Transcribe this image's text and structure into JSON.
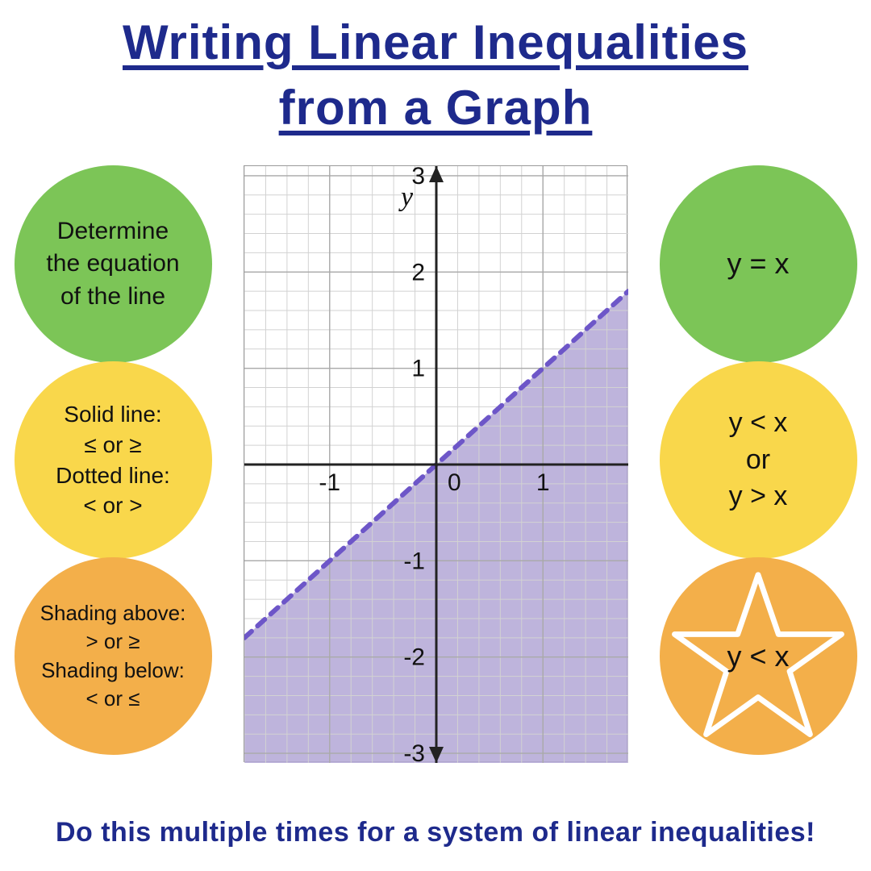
{
  "title_line1": "Writing Linear Inequalities",
  "title_line2": "from a Graph",
  "title_color": "#1e2a8c",
  "title_fontsize": 60,
  "left_circles": [
    {
      "color": "#7cc557",
      "lines": [
        "Determine",
        "the equation",
        "of the line"
      ]
    },
    {
      "color": "#f9d74b",
      "lines": [
        "Solid line:",
        "≤ or ≥",
        "Dotted line:",
        "< or >"
      ]
    },
    {
      "color": "#f3af4a",
      "lines": [
        "Shading above:",
        "> or ≥",
        "Shading below:",
        "< or ≤"
      ]
    }
  ],
  "right_circles": [
    {
      "color": "#7cc557",
      "text": "y = x"
    },
    {
      "color": "#f9d74b",
      "lines": [
        "y < x",
        "or",
        "y > x"
      ]
    },
    {
      "color": "#f3af4a",
      "text": "y < x",
      "star": true
    }
  ],
  "footer": "Do this multiple times for a system of linear inequalities!",
  "graph": {
    "xlim": [
      -1.8,
      1.8
    ],
    "ylim": [
      -3.1,
      3.1
    ],
    "x_ticks": [
      -1,
      0,
      1
    ],
    "y_ticks": [
      -3,
      -2,
      -1,
      1,
      2,
      3
    ],
    "minor_ticks_per_unit": 5,
    "grid_color": "#a9a9a9",
    "minor_grid_color": "#d2d2d2",
    "axis_color": "#222222",
    "background_color": "#ffffff",
    "shade_color": "#b3a7d6",
    "line_color": "#6d56c8",
    "line_dash": "12,10",
    "line_width": 6,
    "axis_width": 3,
    "tick_fontsize": 30,
    "y_axis_label": "y",
    "axis_label_fontsize": 34
  },
  "colors": {
    "green": "#7cc557",
    "yellow": "#f9d74b",
    "orange": "#f3af4a",
    "title": "#1e2a8c",
    "star_outline": "#ffffff"
  }
}
